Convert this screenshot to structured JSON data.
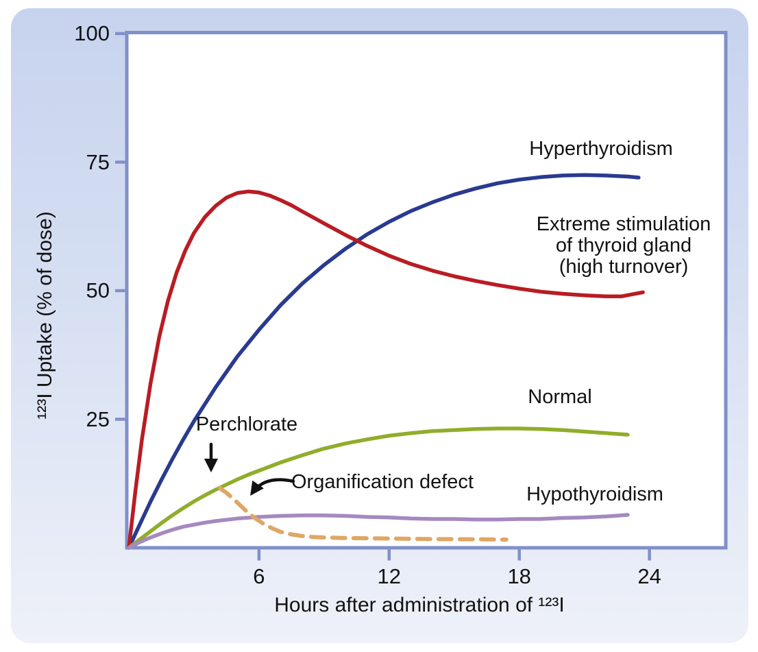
{
  "card": {
    "bg_top": "#c7d3ee",
    "bg_bottom": "#eef1f9"
  },
  "plot": {
    "bg": "#ffffff",
    "frame_color": "#8090c9"
  },
  "y_axis": {
    "title": "¹²³I Uptake (% of dose)",
    "ticks": [
      {
        "value": 100,
        "label": "100"
      },
      {
        "value": 75,
        "label": "75"
      },
      {
        "value": 50,
        "label": "50"
      },
      {
        "value": 25,
        "label": "25"
      }
    ]
  },
  "x_axis": {
    "title": "Hours after administration of ¹²³I",
    "ticks": [
      {
        "value": 6,
        "label": "6"
      },
      {
        "value": 12,
        "label": "12"
      },
      {
        "value": 18,
        "label": "18"
      },
      {
        "value": 24,
        "label": "24"
      }
    ]
  },
  "annotations": {
    "hyperthyroidism": "Hyperthyroidism",
    "extreme_line1": "Extreme stimulation",
    "extreme_line2": "of thyroid gland",
    "extreme_line3": "(high turnover)",
    "normal": "Normal",
    "perchlorate": "Perchlorate",
    "organification": "Organification defect",
    "hypothyroidism": "Hypothyroidism"
  },
  "chart_data": {
    "type": "line",
    "title": "",
    "xlabel": "Hours after administration of ¹²³I",
    "ylabel": "¹²³I Uptake (% of dose)",
    "xlim": [
      0,
      27.5
    ],
    "ylim": [
      0,
      100
    ],
    "x_ticks": [
      6,
      12,
      18,
      24
    ],
    "y_ticks": [
      25,
      50,
      75,
      100
    ],
    "grid": false,
    "legend_position": "inline-labels",
    "series": [
      {
        "id": "hyperthyroidism",
        "name": "Hyperthyroidism",
        "color": "#293a90",
        "style": "solid",
        "points": [
          [
            0,
            0
          ],
          [
            0.5,
            4.5
          ],
          [
            1,
            9
          ],
          [
            1.5,
            13.2
          ],
          [
            2,
            17.2
          ],
          [
            2.5,
            21
          ],
          [
            3,
            24.6
          ],
          [
            4,
            31.2
          ],
          [
            5,
            37.2
          ],
          [
            6,
            42.4
          ],
          [
            7,
            47.2
          ],
          [
            8,
            51.4
          ],
          [
            9,
            55
          ],
          [
            10,
            58.2
          ],
          [
            11,
            61
          ],
          [
            12,
            63.4
          ],
          [
            13,
            65.5
          ],
          [
            14,
            67.2
          ],
          [
            15,
            68.7
          ],
          [
            16,
            69.9
          ],
          [
            17,
            70.9
          ],
          [
            18,
            71.6
          ],
          [
            19,
            72.1
          ],
          [
            20,
            72.4
          ],
          [
            21,
            72.5
          ],
          [
            22,
            72.4
          ],
          [
            23,
            72.2
          ],
          [
            23.5,
            72
          ]
        ]
      },
      {
        "id": "extreme-stimulation",
        "name": "Extreme stimulation of thyroid gland (high turnover)",
        "color": "#b91c23",
        "style": "solid",
        "points": [
          [
            0,
            0
          ],
          [
            0.3,
            11
          ],
          [
            0.6,
            21
          ],
          [
            1,
            32
          ],
          [
            1.4,
            41
          ],
          [
            1.8,
            48
          ],
          [
            2.2,
            53.5
          ],
          [
            2.6,
            57.8
          ],
          [
            3,
            61.2
          ],
          [
            3.5,
            64.3
          ],
          [
            4,
            66.5
          ],
          [
            4.5,
            68.1
          ],
          [
            5,
            69
          ],
          [
            5.5,
            69.3
          ],
          [
            6,
            69.1
          ],
          [
            6.5,
            68.5
          ],
          [
            7,
            67.6
          ],
          [
            7.5,
            66.6
          ],
          [
            8,
            65.4
          ],
          [
            9,
            63.1
          ],
          [
            10,
            60.8
          ],
          [
            11,
            58.7
          ],
          [
            12,
            56.8
          ],
          [
            13,
            55.2
          ],
          [
            14,
            53.9
          ],
          [
            15,
            52.8
          ],
          [
            16,
            51.9
          ],
          [
            17,
            51.1
          ],
          [
            18,
            50.4
          ],
          [
            19,
            49.8
          ],
          [
            20,
            49.4
          ],
          [
            21,
            49.1
          ],
          [
            22,
            48.9
          ],
          [
            22.7,
            48.9
          ],
          [
            23.7,
            49.7
          ]
        ]
      },
      {
        "id": "normal",
        "name": "Normal",
        "color": "#90ad2b",
        "style": "solid",
        "points": [
          [
            0,
            0
          ],
          [
            0.5,
            1.6
          ],
          [
            1,
            3.2
          ],
          [
            1.5,
            4.8
          ],
          [
            2,
            6.3
          ],
          [
            2.5,
            7.7
          ],
          [
            3,
            9
          ],
          [
            3.5,
            10.2
          ],
          [
            4,
            11.3
          ],
          [
            4.5,
            12.3
          ],
          [
            5,
            13.3
          ],
          [
            5.5,
            14.2
          ],
          [
            6,
            15
          ],
          [
            7,
            16.6
          ],
          [
            8,
            18
          ],
          [
            9,
            19.3
          ],
          [
            10,
            20.3
          ],
          [
            11,
            21.1
          ],
          [
            12,
            21.8
          ],
          [
            13,
            22.3
          ],
          [
            14,
            22.7
          ],
          [
            15,
            22.9
          ],
          [
            16,
            23.1
          ],
          [
            17,
            23.2
          ],
          [
            18,
            23.2
          ],
          [
            19,
            23.1
          ],
          [
            20,
            22.9
          ],
          [
            21,
            22.6
          ],
          [
            22,
            22.3
          ],
          [
            23,
            22
          ]
        ]
      },
      {
        "id": "hypothyroidism",
        "name": "Hypothyroidism",
        "color": "#a689c0",
        "style": "solid",
        "points": [
          [
            0,
            0
          ],
          [
            0.5,
            1.1
          ],
          [
            1,
            2
          ],
          [
            1.5,
            2.8
          ],
          [
            2,
            3.5
          ],
          [
            2.5,
            4.1
          ],
          [
            3,
            4.5
          ],
          [
            3.5,
            4.9
          ],
          [
            4,
            5.2
          ],
          [
            5,
            5.7
          ],
          [
            6,
            6
          ],
          [
            7,
            6.2
          ],
          [
            8,
            6.3
          ],
          [
            9,
            6.3
          ],
          [
            10,
            6.2
          ],
          [
            11,
            6
          ],
          [
            12,
            5.9
          ],
          [
            13,
            5.7
          ],
          [
            14,
            5.6
          ],
          [
            15,
            5.6
          ],
          [
            16,
            5.5
          ],
          [
            17,
            5.5
          ],
          [
            18,
            5.6
          ],
          [
            19,
            5.6
          ],
          [
            20,
            5.8
          ],
          [
            21,
            5.9
          ],
          [
            22,
            6.1
          ],
          [
            23,
            6.4
          ]
        ]
      },
      {
        "id": "organification-defect",
        "name": "Organification defect",
        "color": "#dfa765",
        "style": "dashed",
        "points": [
          [
            4.2,
            11.6
          ],
          [
            4.5,
            10.7
          ],
          [
            4.8,
            9.6
          ],
          [
            5.1,
            8.4
          ],
          [
            5.4,
            7.2
          ],
          [
            5.8,
            5.8
          ],
          [
            6.2,
            4.7
          ],
          [
            6.6,
            3.8
          ],
          [
            7,
            3.1
          ],
          [
            7.5,
            2.6
          ],
          [
            8,
            2.3
          ],
          [
            8.5,
            2.1
          ],
          [
            9,
            2
          ],
          [
            10,
            1.9
          ],
          [
            11,
            1.85
          ],
          [
            12,
            1.8
          ],
          [
            13,
            1.75
          ],
          [
            14,
            1.7
          ],
          [
            15,
            1.68
          ],
          [
            16,
            1.65
          ],
          [
            17,
            1.62
          ],
          [
            17.4,
            1.6
          ]
        ]
      }
    ]
  }
}
